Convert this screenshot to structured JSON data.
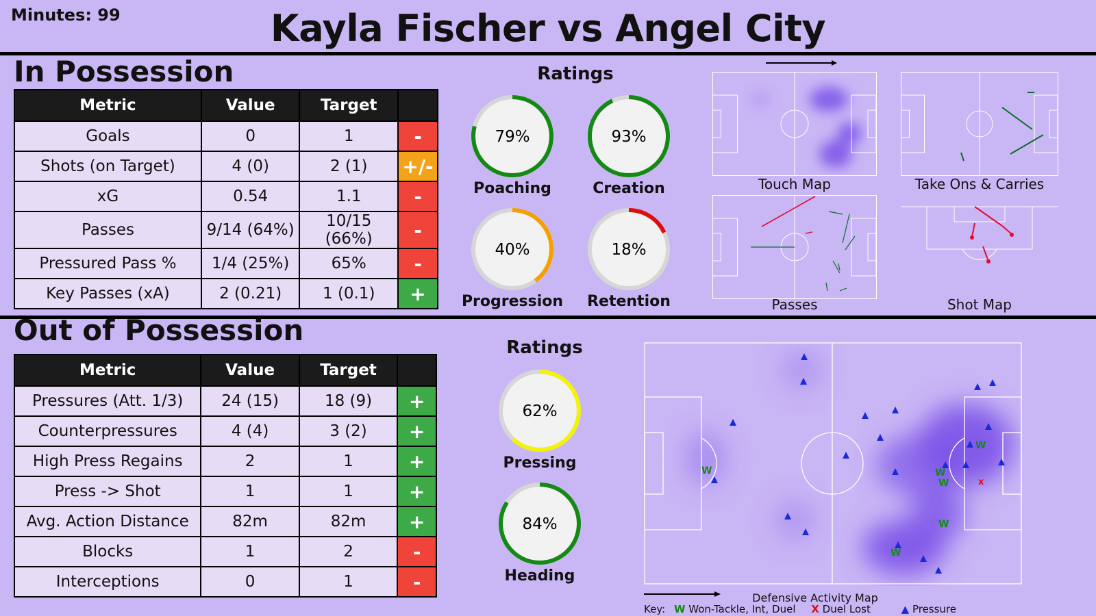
{
  "header": {
    "minutes_label": "Minutes: 99",
    "title": "Kayla Fischer vs Angel City"
  },
  "in_possession": {
    "title": "In Possession",
    "columns": [
      "Metric",
      "Value",
      "Target",
      ""
    ],
    "rows": [
      {
        "metric": "Goals",
        "value": "0",
        "target": "1",
        "status": "-",
        "status_color": "#f0443a"
      },
      {
        "metric": "Shots (on Target)",
        "value": "4 (0)",
        "target": "2 (1)",
        "status": "+/-",
        "status_color": "#f5a21b"
      },
      {
        "metric": "xG",
        "value": "0.54",
        "target": "1.1",
        "status": "-",
        "status_color": "#f0443a"
      },
      {
        "metric": "Passes",
        "value": "9/14 (64%)",
        "target": "10/15 (66%)",
        "status": "-",
        "status_color": "#f0443a"
      },
      {
        "metric": "Pressured Pass %",
        "value": "1/4 (25%)",
        "target": "65%",
        "status": "-",
        "status_color": "#f0443a"
      },
      {
        "metric": "Key Passes (xA)",
        "value": "2 (0.21)",
        "target": "1 (0.1)",
        "status": "+",
        "status_color": "#3daa47"
      }
    ],
    "ratings_title": "Ratings",
    "ratings": [
      {
        "label": "Poaching",
        "value_text": "79%",
        "value": 0.79,
        "color": "#138a13"
      },
      {
        "label": "Creation",
        "value_text": "93%",
        "value": 0.93,
        "color": "#138a13"
      },
      {
        "label": "Progression",
        "value_text": "40%",
        "value": 0.4,
        "color": "#f5a000"
      },
      {
        "label": "Retention",
        "value_text": "18%",
        "value": 0.18,
        "color": "#e00d0d"
      }
    ],
    "maps": [
      "Touch Map",
      "Take Ons & Carries",
      "Passes",
      "Shot Map"
    ]
  },
  "out_of_possession": {
    "title": "Out of Possession",
    "columns": [
      "Metric",
      "Value",
      "Target",
      ""
    ],
    "rows": [
      {
        "metric": "Pressures (Att. 1/3)",
        "value": "24 (15)",
        "target": "18 (9)",
        "status": "+",
        "status_color": "#3daa47"
      },
      {
        "metric": "Counterpressures",
        "value": "4 (4)",
        "target": "3 (2)",
        "status": "+",
        "status_color": "#3daa47"
      },
      {
        "metric": "High Press Regains",
        "value": "2",
        "target": "1",
        "status": "+",
        "status_color": "#3daa47"
      },
      {
        "metric": "Press -> Shot",
        "value": "1",
        "target": "1",
        "status": "+",
        "status_color": "#3daa47"
      },
      {
        "metric": "Avg. Action Distance",
        "value": "82m",
        "target": "82m",
        "status": "+",
        "status_color": "#3daa47"
      },
      {
        "metric": "Blocks",
        "value": "1",
        "target": "2",
        "status": "-",
        "status_color": "#f0443a"
      },
      {
        "metric": "Interceptions",
        "value": "0",
        "target": "1",
        "status": "-",
        "status_color": "#f0443a"
      }
    ],
    "ratings_title": "Ratings",
    "ratings": [
      {
        "label": "Pressing",
        "value_text": "62%",
        "value": 0.62,
        "color": "#f2f20a"
      },
      {
        "label": "Heading",
        "value_text": "84%",
        "value": 0.84,
        "color": "#138a13"
      }
    ],
    "map_title": "Defensive Activity Map",
    "key": {
      "label": "Key:",
      "won": "Won-Tackle, Int, Duel",
      "lost": "Duel Lost",
      "pressure": "Pressure"
    }
  }
}
